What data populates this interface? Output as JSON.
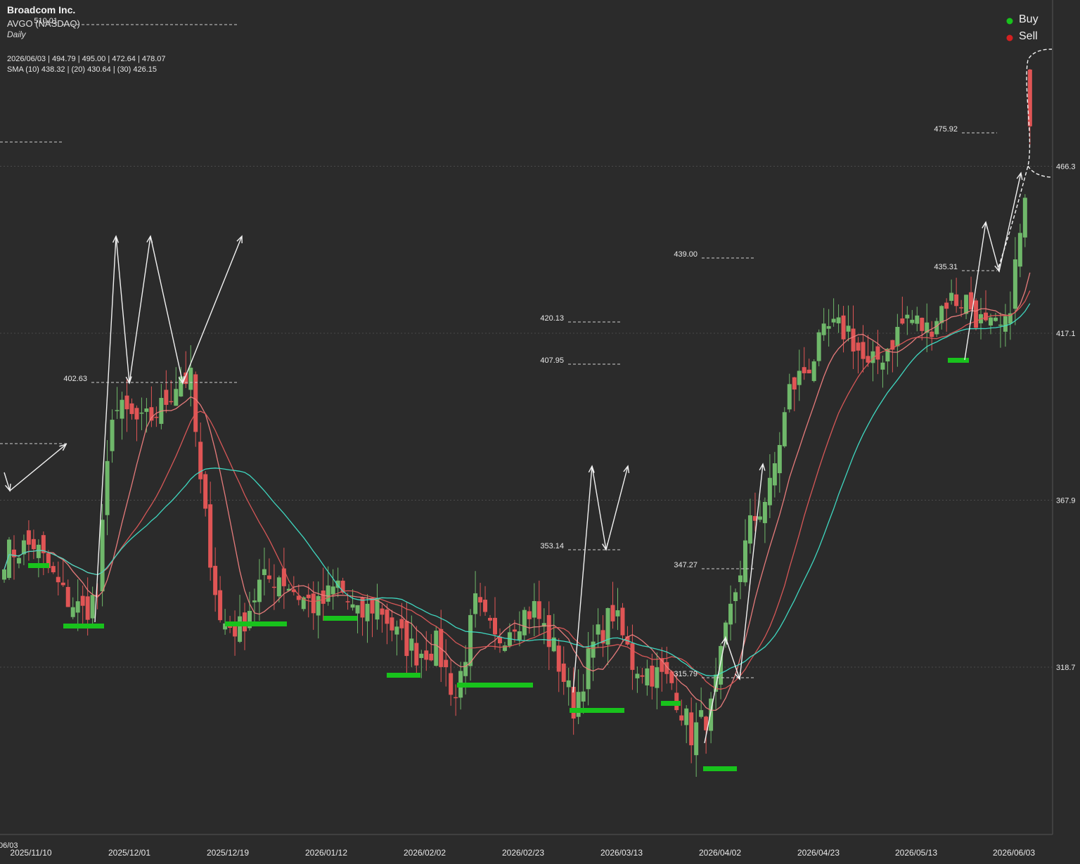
{
  "header": {
    "company": "Broadcom Inc.",
    "ticker": "AVGO (NASDAQ)",
    "period": "Daily",
    "ohlc_line": "2026/06/03 | 494.79 | 495.00 | 472.64 | 478.07",
    "sma_line": "SMA (10) 438.32 | (20) 430.64 | (30) 426.15"
  },
  "legend": {
    "buy_label": "Buy",
    "sell_label": "Sell",
    "buy_color": "#18c21c",
    "sell_color": "#d42020"
  },
  "colors": {
    "background": "#2b2b2b",
    "up_candle": "#6fb86a",
    "down_candle": "#e05555",
    "sma10": "#f08080",
    "sma20": "#e05a5a",
    "sma30": "#40e0c8",
    "signal_bar": "#18c21c"
  },
  "chart_data": {
    "type": "candlestick",
    "y_ticks": [
      318.7,
      367.9,
      417.1,
      466.3
    ],
    "y_tick_labels": [
      "318.7",
      "367.9",
      "417.1",
      "466.3"
    ],
    "x_tick_labels": [
      "2025/11/10",
      "2025/12/01",
      "2025/12/19",
      "2026/01/12",
      "2026/02/02",
      "2026/02/23",
      "2026/03/13",
      "2026/04/02",
      "2026/04/23",
      "2026/05/13",
      "2026/06/03"
    ],
    "left_edge_label": "06/03",
    "level_labels": [
      "510.01",
      "475.92",
      "439.00",
      "435.31",
      "420.13",
      "407.95",
      "402.63",
      "353.14",
      "347.27",
      "315.79"
    ],
    "series": [
      {
        "name": "SMA (10)",
        "last": 438.32
      },
      {
        "name": "SMA (20)",
        "last": 430.64
      },
      {
        "name": "SMA (30)",
        "last": 426.15
      }
    ],
    "last_candle": {
      "date": "2026/06/03",
      "open": 494.79,
      "high": 495.0,
      "low": 472.64,
      "close": 478.07
    },
    "grid": "horizontal",
    "legend_position": "top-right"
  }
}
